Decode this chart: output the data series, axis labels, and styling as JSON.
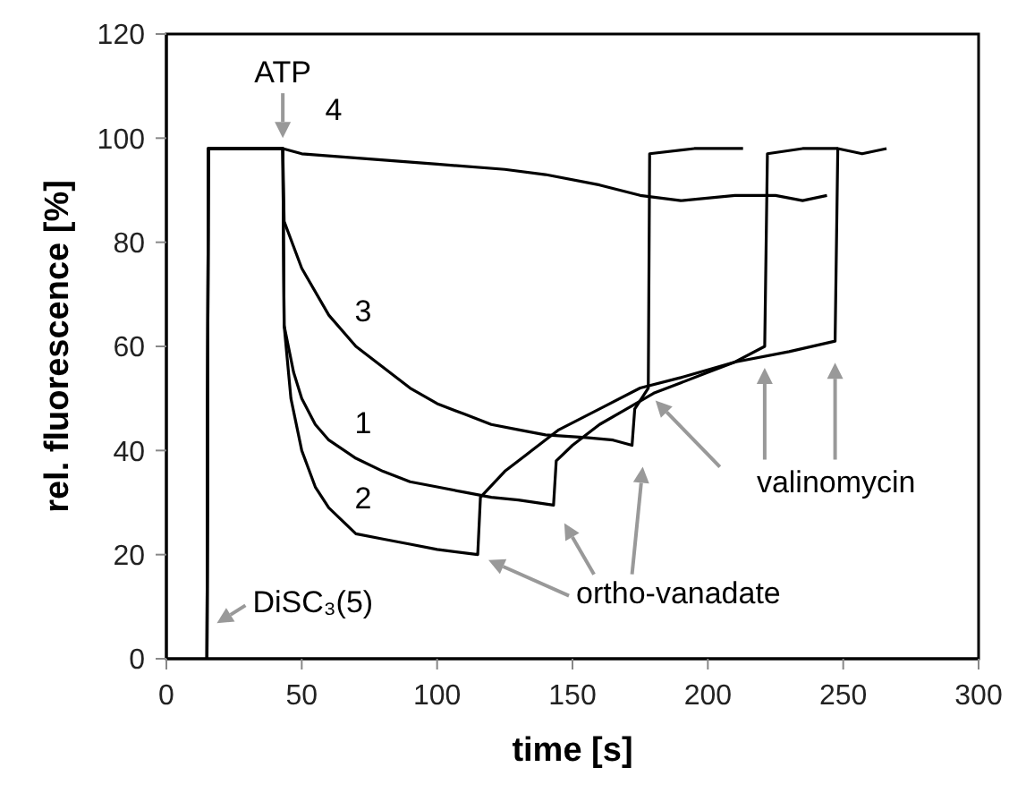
{
  "chart_data": {
    "type": "line",
    "xlabel": "time [s]",
    "ylabel": "rel. fluorescence [%]",
    "xlim": [
      0,
      300
    ],
    "xticks": [
      0,
      50,
      100,
      150,
      200,
      250,
      300
    ],
    "ylim": [
      0,
      120
    ],
    "yticks": [
      0,
      20,
      40,
      60,
      80,
      100,
      120
    ],
    "marker": "none",
    "line_style": "solid",
    "series": [
      {
        "name": "1",
        "color": "#000000",
        "x": [
          15,
          15.5,
          25,
          35,
          43,
          43.5,
          47,
          50,
          55,
          60,
          70,
          80,
          90,
          100,
          110,
          120,
          130,
          143,
          144,
          150,
          160,
          170,
          180,
          190,
          200,
          210,
          221,
          222,
          235,
          248
        ],
        "values": [
          0,
          98,
          98,
          98,
          98,
          64,
          55,
          50,
          45,
          42,
          38.5,
          36,
          34,
          33,
          32,
          31,
          30.5,
          29.5,
          38,
          41,
          45,
          48,
          51,
          53,
          55,
          57,
          60,
          97,
          98,
          98
        ]
      },
      {
        "name": "2",
        "color": "#000000",
        "x": [
          15,
          15.5,
          25,
          35,
          43,
          43.5,
          46,
          50,
          55,
          60,
          70,
          80,
          90,
          100,
          115,
          116,
          125,
          135,
          145,
          160,
          175,
          190,
          210,
          230,
          247,
          248,
          257,
          266
        ],
        "values": [
          0,
          98,
          98,
          98,
          98,
          64,
          50,
          40,
          33,
          29,
          24,
          23,
          22,
          21,
          20,
          31,
          36,
          40,
          44,
          48,
          52,
          54,
          57,
          59,
          61,
          98,
          97,
          98
        ]
      },
      {
        "name": "3",
        "color": "#000000",
        "x": [
          15,
          15.5,
          25,
          35,
          43,
          43.5,
          50,
          60,
          70,
          80,
          90,
          100,
          110,
          120,
          130,
          140,
          155,
          165,
          172,
          173,
          178,
          178.5,
          195,
          213
        ],
        "values": [
          0,
          98,
          98,
          98,
          98,
          84,
          75,
          66,
          60,
          56,
          52,
          49,
          47,
          45,
          44,
          43,
          42.5,
          42,
          41,
          48,
          52,
          97,
          98,
          98
        ]
      },
      {
        "name": "4",
        "color": "#000000",
        "x": [
          15,
          15.5,
          25,
          35,
          43,
          50,
          75,
          100,
          125,
          140,
          160,
          175,
          190,
          210,
          225,
          235,
          244
        ],
        "values": [
          0,
          98,
          98,
          98,
          98,
          97,
          96,
          95,
          94,
          93,
          91,
          89,
          88,
          89,
          89,
          88,
          89
        ]
      }
    ],
    "annotations": [
      {
        "text": "ATP",
        "x": 43,
        "y": 99
      },
      {
        "text": "DiSC₃(5)",
        "x": 16,
        "y": 2
      },
      "ortho-vanadate",
      "valinomycin"
    ]
  }
}
